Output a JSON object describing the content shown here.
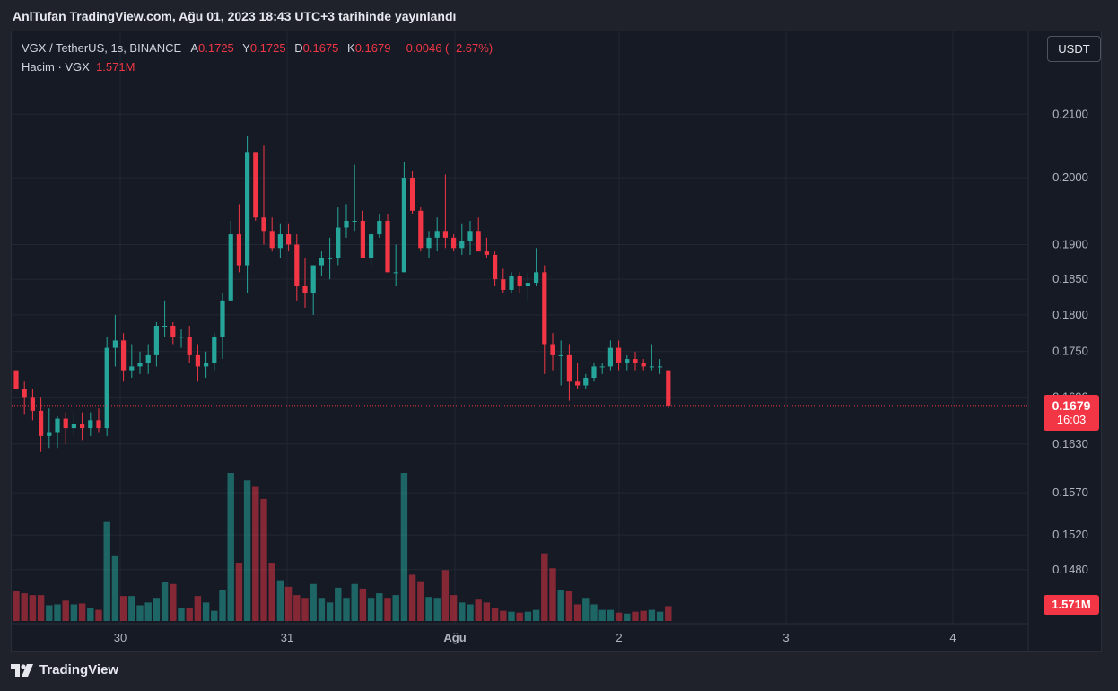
{
  "header": {
    "published": "AnlTufan TradingView.com, Ağu 01, 2023 18:43 UTC+3 tarihinde yayınlandı"
  },
  "legend": {
    "symbol": "VGX / TetherUS, 1s, BINANCE",
    "o_label": "A",
    "o": "0.1725",
    "h_label": "Y",
    "h": "0.1725",
    "l_label": "D",
    "l": "0.1675",
    "c_label": "K",
    "c": "0.1679",
    "change": "−0.0046 (−2.67%)",
    "volume_label": "Hacim · VGX",
    "volume_value": "1.571M"
  },
  "currency_button": "USDT",
  "last_price": {
    "price": "0.1679",
    "countdown": "16:03"
  },
  "last_volume": "1.571M",
  "footer": {
    "brand": "TradingView"
  },
  "colors": {
    "up": "#26a69a",
    "down": "#f23645",
    "background": "#161a25",
    "grid": "#232733"
  },
  "chart_data": {
    "type": "candlestick",
    "y_axis": {
      "scale": "log",
      "range": [
        0.1445,
        0.2125
      ],
      "tick_labels": [
        "0.2100",
        "0.2000",
        "0.1900",
        "0.1850",
        "0.1800",
        "0.1750",
        "0.1690",
        "0.1630",
        "0.1570",
        "0.1520",
        "0.1480"
      ]
    },
    "x_axis": {
      "tick_labels": [
        "30",
        "31",
        "Ağu",
        "2",
        "3",
        "4"
      ]
    },
    "last_price_line": 0.1679,
    "candles": [
      {
        "o": 0.1725,
        "h": 0.1725,
        "l": 0.17,
        "c": 0.17,
        "v": 0.32
      },
      {
        "o": 0.17,
        "h": 0.171,
        "l": 0.1668,
        "c": 0.169,
        "v": 0.3
      },
      {
        "o": 0.169,
        "h": 0.17,
        "l": 0.166,
        "c": 0.1672,
        "v": 0.28
      },
      {
        "o": 0.1672,
        "h": 0.169,
        "l": 0.162,
        "c": 0.164,
        "v": 0.28
      },
      {
        "o": 0.164,
        "h": 0.1675,
        "l": 0.1625,
        "c": 0.1645,
        "v": 0.17
      },
      {
        "o": 0.1645,
        "h": 0.1665,
        "l": 0.1625,
        "c": 0.1662,
        "v": 0.18
      },
      {
        "o": 0.1662,
        "h": 0.167,
        "l": 0.163,
        "c": 0.165,
        "v": 0.22
      },
      {
        "o": 0.165,
        "h": 0.167,
        "l": 0.164,
        "c": 0.1655,
        "v": 0.18
      },
      {
        "o": 0.1655,
        "h": 0.167,
        "l": 0.1635,
        "c": 0.165,
        "v": 0.19
      },
      {
        "o": 0.165,
        "h": 0.167,
        "l": 0.164,
        "c": 0.166,
        "v": 0.14
      },
      {
        "o": 0.166,
        "h": 0.1675,
        "l": 0.1645,
        "c": 0.165,
        "v": 0.12
      },
      {
        "o": 0.165,
        "h": 0.177,
        "l": 0.164,
        "c": 0.1755,
        "v": 1.07
      },
      {
        "o": 0.1755,
        "h": 0.18,
        "l": 0.173,
        "c": 0.1765,
        "v": 0.7
      },
      {
        "o": 0.1765,
        "h": 0.1775,
        "l": 0.171,
        "c": 0.1725,
        "v": 0.27
      },
      {
        "o": 0.1725,
        "h": 0.176,
        "l": 0.1715,
        "c": 0.173,
        "v": 0.27
      },
      {
        "o": 0.173,
        "h": 0.175,
        "l": 0.172,
        "c": 0.1735,
        "v": 0.17
      },
      {
        "o": 0.1735,
        "h": 0.176,
        "l": 0.172,
        "c": 0.1745,
        "v": 0.2
      },
      {
        "o": 0.1745,
        "h": 0.179,
        "l": 0.173,
        "c": 0.1785,
        "v": 0.25
      },
      {
        "o": 0.1785,
        "h": 0.182,
        "l": 0.177,
        "c": 0.1785,
        "v": 0.42
      },
      {
        "o": 0.1785,
        "h": 0.179,
        "l": 0.176,
        "c": 0.177,
        "v": 0.4
      },
      {
        "o": 0.177,
        "h": 0.178,
        "l": 0.1755,
        "c": 0.177,
        "v": 0.14
      },
      {
        "o": 0.177,
        "h": 0.1785,
        "l": 0.1735,
        "c": 0.1745,
        "v": 0.14
      },
      {
        "o": 0.1745,
        "h": 0.176,
        "l": 0.171,
        "c": 0.173,
        "v": 0.27
      },
      {
        "o": 0.173,
        "h": 0.175,
        "l": 0.1715,
        "c": 0.1735,
        "v": 0.2
      },
      {
        "o": 0.1735,
        "h": 0.1775,
        "l": 0.1725,
        "c": 0.177,
        "v": 0.11
      },
      {
        "o": 0.177,
        "h": 0.183,
        "l": 0.174,
        "c": 0.182,
        "v": 0.33
      },
      {
        "o": 0.182,
        "h": 0.1935,
        "l": 0.182,
        "c": 0.1915,
        "v": 1.6
      },
      {
        "o": 0.1915,
        "h": 0.196,
        "l": 0.186,
        "c": 0.187,
        "v": 0.63
      },
      {
        "o": 0.187,
        "h": 0.2065,
        "l": 0.183,
        "c": 0.204,
        "v": 1.52
      },
      {
        "o": 0.204,
        "h": 0.204,
        "l": 0.1935,
        "c": 0.194,
        "v": 1.45
      },
      {
        "o": 0.194,
        "h": 0.205,
        "l": 0.19,
        "c": 0.192,
        "v": 1.32
      },
      {
        "o": 0.192,
        "h": 0.194,
        "l": 0.189,
        "c": 0.1895,
        "v": 0.63
      },
      {
        "o": 0.1895,
        "h": 0.193,
        "l": 0.188,
        "c": 0.1915,
        "v": 0.44
      },
      {
        "o": 0.1915,
        "h": 0.193,
        "l": 0.189,
        "c": 0.19,
        "v": 0.37
      },
      {
        "o": 0.19,
        "h": 0.1915,
        "l": 0.182,
        "c": 0.184,
        "v": 0.28
      },
      {
        "o": 0.184,
        "h": 0.188,
        "l": 0.181,
        "c": 0.183,
        "v": 0.25
      },
      {
        "o": 0.183,
        "h": 0.187,
        "l": 0.18,
        "c": 0.187,
        "v": 0.4
      },
      {
        "o": 0.187,
        "h": 0.189,
        "l": 0.1855,
        "c": 0.188,
        "v": 0.25
      },
      {
        "o": 0.188,
        "h": 0.191,
        "l": 0.185,
        "c": 0.188,
        "v": 0.2
      },
      {
        "o": 0.188,
        "h": 0.1955,
        "l": 0.187,
        "c": 0.1925,
        "v": 0.36
      },
      {
        "o": 0.1925,
        "h": 0.196,
        "l": 0.191,
        "c": 0.1935,
        "v": 0.25
      },
      {
        "o": 0.1935,
        "h": 0.202,
        "l": 0.192,
        "c": 0.1935,
        "v": 0.4
      },
      {
        "o": 0.1935,
        "h": 0.195,
        "l": 0.188,
        "c": 0.188,
        "v": 0.35
      },
      {
        "o": 0.188,
        "h": 0.192,
        "l": 0.187,
        "c": 0.1915,
        "v": 0.25
      },
      {
        "o": 0.1915,
        "h": 0.1945,
        "l": 0.191,
        "c": 0.1935,
        "v": 0.3
      },
      {
        "o": 0.1935,
        "h": 0.1945,
        "l": 0.186,
        "c": 0.186,
        "v": 0.25
      },
      {
        "o": 0.186,
        "h": 0.19,
        "l": 0.184,
        "c": 0.186,
        "v": 0.28
      },
      {
        "o": 0.186,
        "h": 0.2025,
        "l": 0.186,
        "c": 0.2,
        "v": 1.6
      },
      {
        "o": 0.2,
        "h": 0.201,
        "l": 0.1945,
        "c": 0.195,
        "v": 0.5
      },
      {
        "o": 0.195,
        "h": 0.1955,
        "l": 0.189,
        "c": 0.1895,
        "v": 0.43
      },
      {
        "o": 0.1895,
        "h": 0.192,
        "l": 0.188,
        "c": 0.191,
        "v": 0.26
      },
      {
        "o": 0.191,
        "h": 0.194,
        "l": 0.189,
        "c": 0.192,
        "v": 0.25
      },
      {
        "o": 0.192,
        "h": 0.2005,
        "l": 0.1895,
        "c": 0.191,
        "v": 0.55
      },
      {
        "o": 0.191,
        "h": 0.1915,
        "l": 0.189,
        "c": 0.1895,
        "v": 0.28
      },
      {
        "o": 0.1895,
        "h": 0.193,
        "l": 0.1885,
        "c": 0.1905,
        "v": 0.2
      },
      {
        "o": 0.1905,
        "h": 0.1935,
        "l": 0.1885,
        "c": 0.192,
        "v": 0.18
      },
      {
        "o": 0.192,
        "h": 0.194,
        "l": 0.189,
        "c": 0.189,
        "v": 0.23
      },
      {
        "o": 0.189,
        "h": 0.191,
        "l": 0.188,
        "c": 0.1885,
        "v": 0.2
      },
      {
        "o": 0.1885,
        "h": 0.189,
        "l": 0.184,
        "c": 0.185,
        "v": 0.14
      },
      {
        "o": 0.185,
        "h": 0.1865,
        "l": 0.183,
        "c": 0.1835,
        "v": 0.11
      },
      {
        "o": 0.1835,
        "h": 0.186,
        "l": 0.183,
        "c": 0.1855,
        "v": 0.1
      },
      {
        "o": 0.1855,
        "h": 0.186,
        "l": 0.183,
        "c": 0.184,
        "v": 0.09
      },
      {
        "o": 0.184,
        "h": 0.186,
        "l": 0.182,
        "c": 0.1845,
        "v": 0.1
      },
      {
        "o": 0.1845,
        "h": 0.1895,
        "l": 0.184,
        "c": 0.186,
        "v": 0.12
      },
      {
        "o": 0.186,
        "h": 0.187,
        "l": 0.172,
        "c": 0.176,
        "v": 0.73
      },
      {
        "o": 0.176,
        "h": 0.1775,
        "l": 0.1725,
        "c": 0.1745,
        "v": 0.57
      },
      {
        "o": 0.1745,
        "h": 0.1765,
        "l": 0.1705,
        "c": 0.1745,
        "v": 0.33
      },
      {
        "o": 0.1745,
        "h": 0.176,
        "l": 0.1685,
        "c": 0.171,
        "v": 0.32
      },
      {
        "o": 0.171,
        "h": 0.1735,
        "l": 0.17,
        "c": 0.1705,
        "v": 0.18
      },
      {
        "o": 0.1705,
        "h": 0.172,
        "l": 0.17,
        "c": 0.1715,
        "v": 0.25
      },
      {
        "o": 0.1715,
        "h": 0.1735,
        "l": 0.171,
        "c": 0.173,
        "v": 0.18
      },
      {
        "o": 0.173,
        "h": 0.1735,
        "l": 0.172,
        "c": 0.173,
        "v": 0.12
      },
      {
        "o": 0.173,
        "h": 0.1765,
        "l": 0.1725,
        "c": 0.1755,
        "v": 0.12
      },
      {
        "o": 0.1755,
        "h": 0.1765,
        "l": 0.1725,
        "c": 0.1735,
        "v": 0.09
      },
      {
        "o": 0.1735,
        "h": 0.1745,
        "l": 0.1725,
        "c": 0.174,
        "v": 0.08
      },
      {
        "o": 0.174,
        "h": 0.175,
        "l": 0.1725,
        "c": 0.1735,
        "v": 0.1
      },
      {
        "o": 0.1735,
        "h": 0.174,
        "l": 0.1725,
        "c": 0.173,
        "v": 0.11
      },
      {
        "o": 0.173,
        "h": 0.176,
        "l": 0.1725,
        "c": 0.173,
        "v": 0.12
      },
      {
        "o": 0.173,
        "h": 0.174,
        "l": 0.172,
        "c": 0.173,
        "v": 0.1
      },
      {
        "o": 0.1725,
        "h": 0.1725,
        "l": 0.1675,
        "c": 0.1679,
        "v": 0.16
      }
    ]
  }
}
